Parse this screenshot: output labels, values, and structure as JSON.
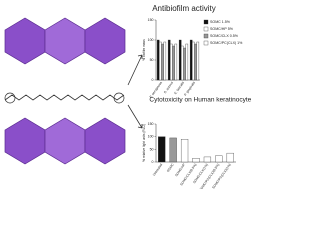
{
  "chart_data": [
    {
      "type": "bar",
      "title": "Antibiofilm activity",
      "ylabel": "% biofilm mass",
      "categories": [
        "P. aeruginosa",
        "S. aureus",
        "E. faecalis",
        "P. gingivalis"
      ],
      "series": [
        {
          "name": "SOMC 1.5%",
          "color": "#111111",
          "values": [
            100,
            100,
            100,
            100
          ]
        },
        {
          "name": "SOMC/HP 5%",
          "color": "#ffffff",
          "values": [
            95,
            90,
            85,
            95
          ]
        },
        {
          "name": "SOMC/CLX 0.5%",
          "color": "#999999",
          "values": [
            90,
            85,
            80,
            90
          ]
        },
        {
          "name": "SOMC/PC(CLX) 1%",
          "color": "#ffffff",
          "values": [
            95,
            90,
            90,
            95
          ]
        }
      ],
      "ylim": [
        0,
        150
      ],
      "yticks": [
        0,
        50,
        100,
        150
      ],
      "legend": "right"
    },
    {
      "type": "bar",
      "title": "Cytotoxicity on Human keratinocytes",
      "ylabel": "% relative light units (RLU)",
      "categories": [
        "Untreated",
        "SOMC",
        "SOMC/HP",
        "SOMC/CLX(0.5%)",
        "SOMC/CLX(1%)",
        "SOMC/PC(CLX)(0.5%)",
        "SOMC/PC(CLX)(1%)"
      ],
      "values": [
        100,
        95,
        90,
        15,
        20,
        25,
        35
      ],
      "colors": [
        "#111111",
        "#999999",
        "#ffffff",
        "#ffffff",
        "#ffffff",
        "#ffffff",
        "#ffffff"
      ],
      "ylim": [
        0,
        150
      ],
      "yticks": [
        0,
        50,
        100,
        150
      ]
    }
  ]
}
